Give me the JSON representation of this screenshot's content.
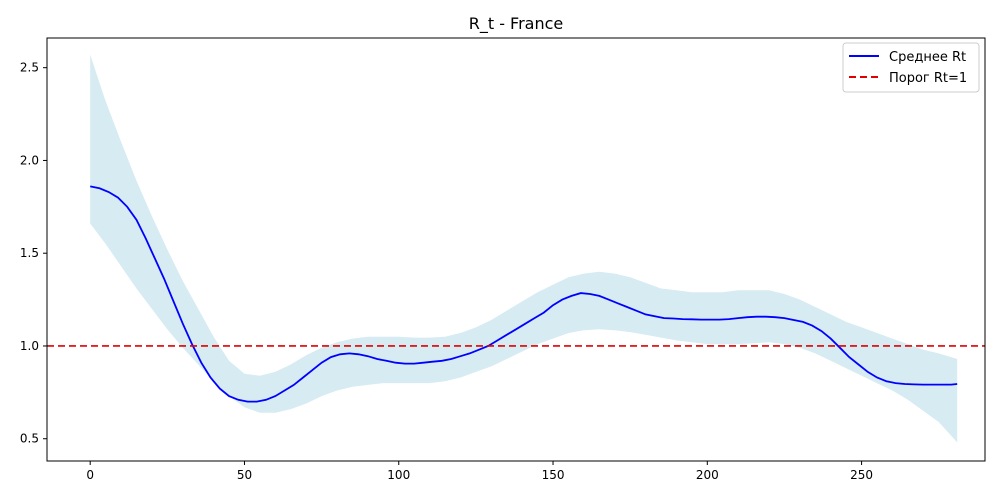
{
  "chart_data": {
    "type": "line",
    "title": "R_t - France",
    "xlabel": "",
    "ylabel": "",
    "xlim": [
      -14,
      290
    ],
    "ylim": [
      0.38,
      2.66
    ],
    "x_ticks": [
      0,
      50,
      100,
      150,
      200,
      250
    ],
    "y_ticks": [
      0.5,
      1.0,
      1.5,
      2.0,
      2.5
    ],
    "x_tick_labels": [
      "0",
      "50",
      "100",
      "150",
      "200",
      "250"
    ],
    "y_tick_labels": [
      "0.5",
      "1.0",
      "1.5",
      "2.0",
      "2.5"
    ],
    "grid": false,
    "legend_position": "top-right",
    "legend": [
      {
        "label": "Среднее Rt",
        "color": "#0000ff",
        "style": "solid"
      },
      {
        "label": "Порог Rt=1",
        "color": "#e00000",
        "style": "dashed"
      }
    ],
    "series": [
      {
        "name": "Среднее Rt",
        "color": "#0000ff",
        "x": [
          0,
          3,
          6,
          9,
          12,
          15,
          18,
          21,
          24,
          27,
          30,
          33,
          36,
          39,
          42,
          45,
          48,
          51,
          54,
          57,
          60,
          63,
          66,
          69,
          72,
          75,
          78,
          81,
          84,
          87,
          90,
          93,
          96,
          99,
          102,
          105,
          108,
          111,
          114,
          117,
          120,
          123,
          126,
          129,
          132,
          135,
          138,
          141,
          144,
          147,
          150,
          153,
          156,
          159,
          162,
          165,
          168,
          171,
          174,
          177,
          180,
          183,
          186,
          189,
          192,
          195,
          198,
          201,
          204,
          207,
          210,
          213,
          216,
          219,
          222,
          225,
          228,
          231,
          234,
          237,
          240,
          243,
          246,
          249,
          252,
          255,
          258,
          261,
          264,
          267,
          270,
          273,
          276,
          279,
          281
        ],
        "y": [
          1.86,
          1.85,
          1.83,
          1.8,
          1.75,
          1.68,
          1.58,
          1.47,
          1.36,
          1.24,
          1.12,
          1.01,
          0.91,
          0.83,
          0.77,
          0.73,
          0.71,
          0.7,
          0.7,
          0.71,
          0.73,
          0.76,
          0.79,
          0.83,
          0.87,
          0.91,
          0.94,
          0.955,
          0.96,
          0.955,
          0.945,
          0.93,
          0.92,
          0.91,
          0.905,
          0.905,
          0.91,
          0.915,
          0.92,
          0.93,
          0.945,
          0.96,
          0.98,
          1.0,
          1.03,
          1.06,
          1.09,
          1.12,
          1.15,
          1.18,
          1.22,
          1.25,
          1.27,
          1.285,
          1.28,
          1.27,
          1.25,
          1.23,
          1.21,
          1.19,
          1.17,
          1.16,
          1.15,
          1.148,
          1.145,
          1.144,
          1.142,
          1.142,
          1.142,
          1.145,
          1.15,
          1.155,
          1.158,
          1.158,
          1.155,
          1.15,
          1.14,
          1.13,
          1.11,
          1.08,
          1.04,
          0.99,
          0.94,
          0.9,
          0.86,
          0.83,
          0.81,
          0.8,
          0.795,
          0.793,
          0.792,
          0.792,
          0.792,
          0.792,
          0.795
        ]
      },
      {
        "name": "Порог Rt=1",
        "color": "#e00000",
        "style": "dashed",
        "y_constant": 1.0
      }
    ],
    "band": {
      "color": "#add8e6",
      "opacity": 0.5,
      "x": [
        0,
        5,
        10,
        15,
        20,
        25,
        30,
        35,
        40,
        45,
        50,
        55,
        60,
        65,
        70,
        75,
        80,
        85,
        90,
        95,
        100,
        105,
        110,
        115,
        120,
        125,
        130,
        135,
        140,
        145,
        150,
        155,
        160,
        165,
        170,
        175,
        180,
        185,
        190,
        195,
        200,
        205,
        210,
        215,
        220,
        225,
        230,
        235,
        240,
        245,
        250,
        255,
        260,
        265,
        270,
        275,
        281
      ],
      "upper": [
        2.57,
        2.32,
        2.1,
        1.89,
        1.7,
        1.52,
        1.35,
        1.2,
        1.05,
        0.92,
        0.85,
        0.84,
        0.86,
        0.9,
        0.95,
        0.99,
        1.02,
        1.04,
        1.05,
        1.05,
        1.05,
        1.045,
        1.045,
        1.05,
        1.07,
        1.1,
        1.14,
        1.19,
        1.24,
        1.29,
        1.33,
        1.37,
        1.39,
        1.4,
        1.39,
        1.37,
        1.34,
        1.31,
        1.3,
        1.29,
        1.29,
        1.29,
        1.3,
        1.3,
        1.3,
        1.28,
        1.25,
        1.21,
        1.17,
        1.13,
        1.1,
        1.07,
        1.04,
        1.01,
        0.98,
        0.96,
        0.93
      ],
      "lower": [
        1.66,
        1.55,
        1.43,
        1.31,
        1.2,
        1.09,
        0.99,
        0.9,
        0.81,
        0.73,
        0.67,
        0.64,
        0.64,
        0.66,
        0.69,
        0.73,
        0.76,
        0.78,
        0.79,
        0.8,
        0.8,
        0.8,
        0.8,
        0.81,
        0.83,
        0.86,
        0.89,
        0.93,
        0.97,
        1.01,
        1.04,
        1.07,
        1.085,
        1.09,
        1.085,
        1.075,
        1.06,
        1.045,
        1.03,
        1.02,
        1.01,
        1.01,
        1.01,
        1.015,
        1.02,
        1.01,
        0.99,
        0.96,
        0.92,
        0.88,
        0.84,
        0.8,
        0.76,
        0.71,
        0.65,
        0.59,
        0.48
      ]
    }
  }
}
